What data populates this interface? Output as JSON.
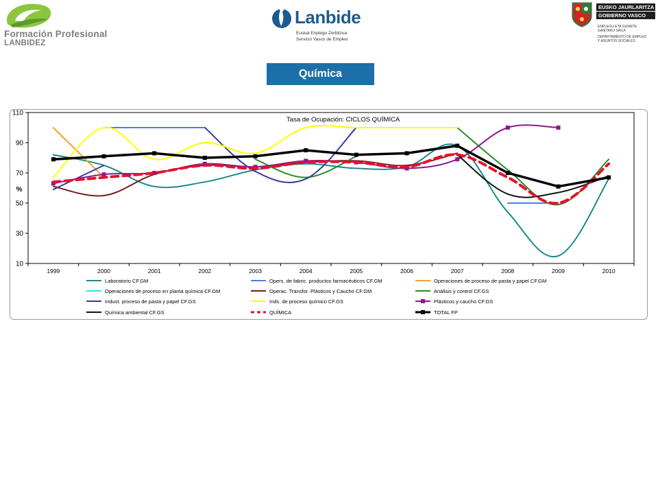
{
  "header": {
    "fp_logo": {
      "line1": "Formación Profesional",
      "line2": "LANBIDEZ",
      "color": "#7d7d7d",
      "accent": "#8cc63f"
    },
    "lanbide_logo": {
      "name": "Lanbide",
      "sub1": "Euskal Enplegu Zerbitzua",
      "sub2": "Servicio Vasco de Empleo",
      "color": "#1d5b8f"
    },
    "gv_logo": {
      "line1": "EUSKO JAURLARITZA",
      "line2": "GOBIERNO VASCO",
      "dept1": "ENPLEGU ETA GIZARTE",
      "dept2": "GAIETAKO SAILA",
      "dept3": "DEPARTAMENTO DE EMPLEO",
      "dept4": "Y ASUNTOS SOCIALES"
    },
    "section_title": "Química",
    "title_color": "#1c6fa8"
  },
  "chart_data": {
    "type": "line",
    "title": "Tasa de Ocupación: CICLOS QUÍMICA",
    "ylabel": "%",
    "xlabel": "",
    "ylim": [
      10,
      110
    ],
    "yticks": [
      10,
      30,
      50,
      70,
      90,
      110
    ],
    "categories": [
      "1999",
      "2000",
      "2001",
      "2002",
      "2003",
      "2004",
      "2005",
      "2006",
      "2007",
      "2008",
      "2009",
      "2010"
    ],
    "grid": false,
    "legend_position": "bottom",
    "series": [
      {
        "name": "Laboratorio CF.GM",
        "color": "#1a8a8a",
        "width": 2,
        "dash": "",
        "marker": "none",
        "values": [
          82,
          75,
          61,
          64,
          72,
          76,
          73,
          74,
          88,
          44,
          15,
          66
        ]
      },
      {
        "name": "Opers. de fabric. productos farmacéuticos CF.GM",
        "color": "#4a7ee0",
        "width": 2,
        "dash": "",
        "marker": "none",
        "smooth": false,
        "values": [
          null,
          100,
          100,
          100,
          null,
          null,
          null,
          null,
          null,
          50,
          50,
          null
        ]
      },
      {
        "name": "Operaciones de proceso de pasta y papel CF.GM",
        "color": "#f4a12a",
        "width": 2,
        "dash": "",
        "marker": "none",
        "values": [
          100,
          67,
          null,
          null,
          null,
          null,
          null,
          null,
          null,
          null,
          null,
          null
        ]
      },
      {
        "name": "Operaciones de proceso en planta química CF.GM",
        "color": "#34e0f0",
        "width": 2,
        "dash": "",
        "marker": "none",
        "values": [
          null,
          null,
          null,
          null,
          null,
          null,
          null,
          null,
          null,
          null,
          null,
          null
        ]
      },
      {
        "name": "Operac. Transfor. Plásticos y Caucho CF.GM",
        "color": "#7a1a1a",
        "width": 2,
        "dash": "",
        "marker": "none",
        "values": [
          61,
          55,
          69,
          75,
          74,
          77,
          78,
          75,
          83,
          null,
          null,
          null
        ]
      },
      {
        "name": "Análisis y control CF.GS",
        "color": "#2a8a2a",
        "width": 2,
        "dash": "",
        "marker": "none",
        "values": [
          null,
          null,
          null,
          null,
          79,
          67,
          81,
          null,
          100,
          72,
          49,
          79
        ]
      },
      {
        "name": "Indust. proceso de pasta y papel CF.GS",
        "color": "#3b3b9a",
        "width": 2,
        "dash": "",
        "marker": "none",
        "values": [
          59,
          75,
          null,
          100,
          71,
          66,
          100,
          null,
          null,
          null,
          null,
          null
        ]
      },
      {
        "name": "Inds. de proceso químico CF.GS",
        "color": "#ffff00",
        "width": 2,
        "dash": "",
        "marker": "none",
        "values": [
          67,
          100,
          79,
          90,
          83,
          100,
          100,
          100,
          100,
          null,
          null,
          null
        ]
      },
      {
        "name": "Plásticos y caucho CF.GS",
        "color": "#8a1a8a",
        "width": 2,
        "dash": "",
        "marker": "square",
        "values": [
          63,
          69,
          70,
          76,
          74,
          78,
          77,
          73,
          79,
          100,
          100,
          null
        ]
      },
      {
        "name": "Química ambiental CF.GS",
        "color": "#111111",
        "width": 2,
        "dash": "",
        "marker": "none",
        "values": [
          null,
          null,
          null,
          null,
          null,
          null,
          null,
          null,
          82,
          56,
          57,
          68
        ]
      },
      {
        "name": "QUÍMICA",
        "color": "#e8102a",
        "width": 4,
        "dash": "10,7",
        "marker": "none",
        "values": [
          64,
          67,
          70,
          75,
          73,
          77,
          77,
          74,
          82,
          67,
          50,
          76
        ]
      },
      {
        "name": "TOTAL FP",
        "color": "#000000",
        "width": 3.5,
        "dash": "",
        "marker": "square",
        "smooth": false,
        "values": [
          79,
          81,
          83,
          80,
          81,
          85,
          82,
          83,
          88,
          70,
          61,
          67
        ]
      }
    ]
  }
}
